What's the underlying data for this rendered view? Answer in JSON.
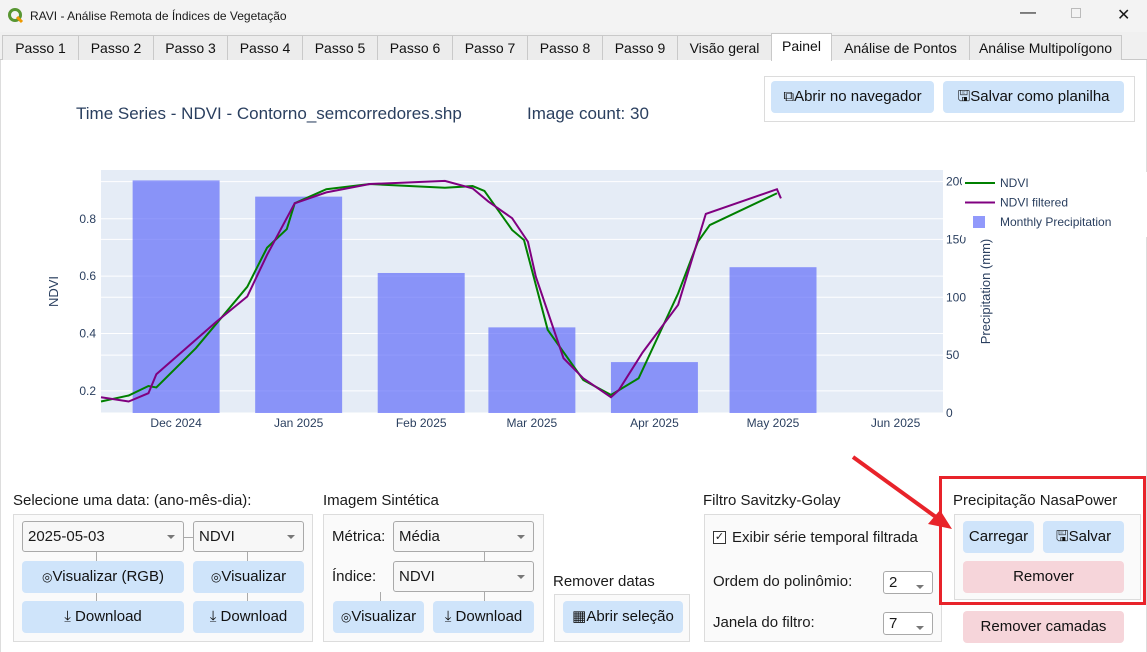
{
  "window": {
    "title": "RAVI - Análise Remota de Índices de Vegetação",
    "controls": [
      "minimize",
      "maximize",
      "close"
    ]
  },
  "tabs": [
    {
      "label": "Passo 1"
    },
    {
      "label": "Passo 2"
    },
    {
      "label": "Passo 3"
    },
    {
      "label": "Passo 4"
    },
    {
      "label": "Passo 5"
    },
    {
      "label": "Passo 6"
    },
    {
      "label": "Passo 7"
    },
    {
      "label": "Passo 8"
    },
    {
      "label": "Passo 9"
    },
    {
      "label": "Visão geral"
    },
    {
      "label": "Painel",
      "active": true
    },
    {
      "label": "Análise de Pontos"
    },
    {
      "label": "Análise Multipolígono"
    }
  ],
  "header": {
    "title": "Time Series - NDVI - Contorno_semcorredores.shp",
    "image_count": "Image count: 30",
    "open_browser": "Abrir no navegador",
    "save_sheet": "Salvar como planilha"
  },
  "colors": {
    "ndvi": "#008000",
    "ndvi_filtered": "#800080",
    "precip": "#636efa",
    "plot_bg": "#e5ecf6",
    "button": "#cfe4fa",
    "button_danger": "#f6d5da",
    "annotation": "#e8232a"
  },
  "chart_data": {
    "type": "line+bar",
    "xlabel": "",
    "ylabel": "NDVI",
    "y2label": "Precipitation (mm)",
    "xlim": [
      "2024-11-12",
      "2025-06-13"
    ],
    "ylim": [
      0.123,
      0.97
    ],
    "y2lim": [
      0,
      210
    ],
    "xticks": [
      {
        "date": "2024-12-01",
        "label": "Dec 2024"
      },
      {
        "date": "2025-01-01",
        "label": "Jan 2025"
      },
      {
        "date": "2025-02-01",
        "label": "Feb 2025"
      },
      {
        "date": "2025-03-01",
        "label": "Mar 2025"
      },
      {
        "date": "2025-04-01",
        "label": "Apr 2025"
      },
      {
        "date": "2025-05-01",
        "label": "May 2025"
      },
      {
        "date": "2025-06-01",
        "label": "Jun 2025"
      }
    ],
    "yticks": [
      0.2,
      0.4,
      0.6,
      0.8
    ],
    "y2ticks": [
      0,
      50,
      100,
      150,
      200
    ],
    "grid": true,
    "legend": "right",
    "series": [
      {
        "name": "NDVI",
        "type": "line",
        "color": "#008000",
        "points": [
          [
            "2024-11-12",
            0.163
          ],
          [
            "2024-11-19",
            0.184
          ],
          [
            "2024-11-24",
            0.217
          ],
          [
            "2024-11-26",
            0.212
          ],
          [
            "2024-12-06",
            0.349
          ],
          [
            "2024-12-19",
            0.563
          ],
          [
            "2024-12-24",
            0.699
          ],
          [
            "2024-12-29",
            0.764
          ],
          [
            "2024-12-31",
            0.854
          ],
          [
            "2025-01-08",
            0.903
          ],
          [
            "2025-01-19",
            0.921
          ],
          [
            "2025-02-07",
            0.908
          ],
          [
            "2025-02-14",
            0.914
          ],
          [
            "2025-02-17",
            0.897
          ],
          [
            "2025-02-24",
            0.761
          ],
          [
            "2025-02-27",
            0.726
          ],
          [
            "2025-03-05",
            0.413
          ],
          [
            "2025-03-14",
            0.238
          ],
          [
            "2025-03-21",
            0.186
          ],
          [
            "2025-03-28",
            0.244
          ],
          [
            "2025-04-07",
            0.54
          ],
          [
            "2025-04-12",
            0.72
          ],
          [
            "2025-04-15",
            0.778
          ],
          [
            "2025-05-02",
            0.889
          ]
        ]
      },
      {
        "name": "NDVI filtered",
        "type": "line",
        "color": "#800080",
        "points": [
          [
            "2024-11-12",
            0.178
          ],
          [
            "2024-11-19",
            0.163
          ],
          [
            "2024-11-24",
            0.192
          ],
          [
            "2024-11-26",
            0.258
          ],
          [
            "2024-12-11",
            0.439
          ],
          [
            "2024-12-19",
            0.529
          ],
          [
            "2024-12-24",
            0.674
          ],
          [
            "2024-12-31",
            0.854
          ],
          [
            "2025-01-08",
            0.892
          ],
          [
            "2025-01-19",
            0.921
          ],
          [
            "2025-02-07",
            0.932
          ],
          [
            "2025-02-14",
            0.906
          ],
          [
            "2025-02-18",
            0.86
          ],
          [
            "2025-02-24",
            0.802
          ],
          [
            "2025-02-28",
            0.72
          ],
          [
            "2025-03-02",
            0.598
          ],
          [
            "2025-03-09",
            0.314
          ],
          [
            "2025-03-14",
            0.244
          ],
          [
            "2025-03-21",
            0.178
          ],
          [
            "2025-03-23",
            0.203
          ],
          [
            "2025-03-29",
            0.334
          ],
          [
            "2025-04-07",
            0.5
          ],
          [
            "2025-04-14",
            0.817
          ],
          [
            "2025-05-02",
            0.903
          ],
          [
            "2025-05-03",
            0.871
          ]
        ]
      },
      {
        "name": "Monthly Precipitation",
        "type": "bar",
        "axis": "y2",
        "color": "#636efa",
        "points": [
          [
            "2024-12-01",
            201
          ],
          [
            "2025-01-01",
            187
          ],
          [
            "2025-02-01",
            121
          ],
          [
            "2025-03-01",
            74
          ],
          [
            "2025-04-01",
            44
          ],
          [
            "2025-05-01",
            126
          ]
        ]
      }
    ]
  },
  "date_section": {
    "label": "Selecione uma data: (ano-mês-dia):",
    "date_value": "2025-05-03",
    "index_value": "NDVI",
    "view_rgb": "Visualizar (RGB)",
    "view": "Visualizar",
    "download": "Download",
    "download2": "Download"
  },
  "synthetic": {
    "label": "Imagem Sintética",
    "metric_label": "Métrica:",
    "metric_value": "Média",
    "index_label": "Índice:",
    "index_value": "NDVI",
    "view": "Visualizar",
    "download": "Download"
  },
  "remove_dates": {
    "label": "Remover datas",
    "open": "Abrir seleção"
  },
  "filter": {
    "label": "Filtro Savitzky-Golay",
    "show_filtered": "Exibir série temporal filtrada",
    "checked": true,
    "order_label": "Ordem do polinômio:",
    "order_value": "2",
    "window_label": "Janela do filtro:",
    "window_value": "7"
  },
  "precip": {
    "label": "Precipitação NasaPower",
    "load": "Carregar",
    "save": "Salvar",
    "remove": "Remover"
  },
  "remove_layers": "Remover camadas"
}
